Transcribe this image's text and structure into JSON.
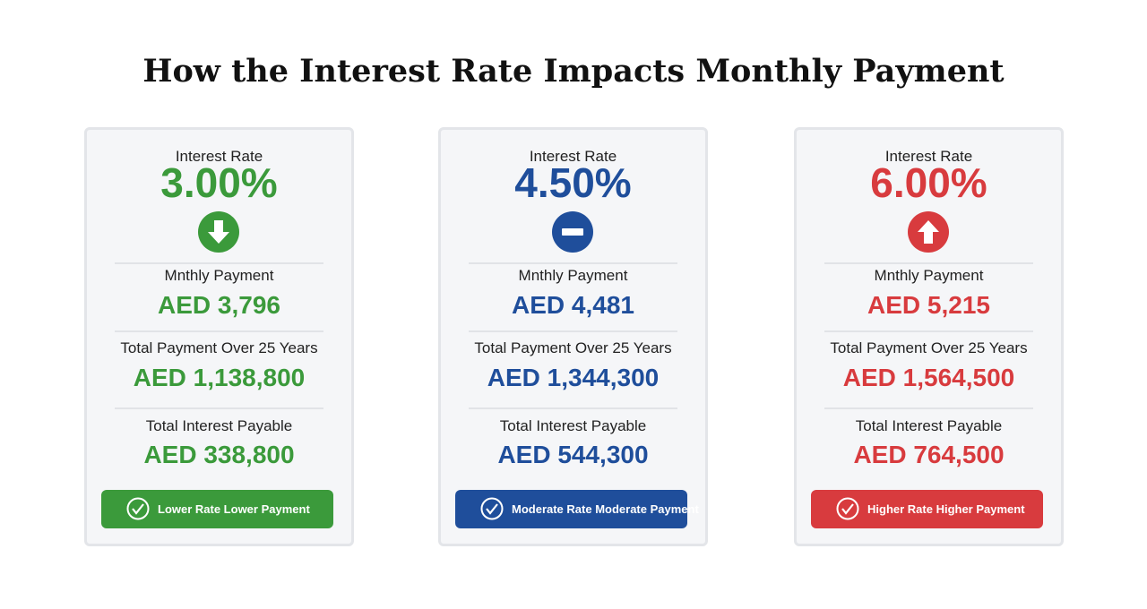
{
  "title": "How the Interest Rate Impacts Monthly Payment",
  "cards": [
    {
      "rate_label": "Interest Rate",
      "rate": "3.00%",
      "monthly_label": "Mnthly Payment",
      "monthly": "AED 3,796",
      "total_label": "Total Payment Over 25 Years",
      "total": "AED 1,138,800",
      "interest_label": "Total Interest Payable",
      "interest": "AED 338,800",
      "badge": "Lower Rate Lower Payment"
    },
    {
      "rate_label": "Interest Rate",
      "rate": "4.50%",
      "monthly_label": "Mnthly Payment",
      "monthly": "AED 4,481",
      "total_label": "Total Payment Over 25 Years",
      "total": "AED 1,344,300",
      "interest_label": "Total Interest Payable",
      "interest": "AED 544,300",
      "badge": "Moderate Rate Moderate Payment"
    },
    {
      "rate_label": "Interest Rate",
      "rate": "6.00%",
      "monthly_label": "Mnthly Payment",
      "monthly": "AED 5,215",
      "total_label": "Total Payment Over 25 Years",
      "total": "AED 1,564,500",
      "interest_label": "Total Interest Payable",
      "interest": "AED 764,500",
      "badge": "Higher Rate Higher Payment"
    }
  ]
}
